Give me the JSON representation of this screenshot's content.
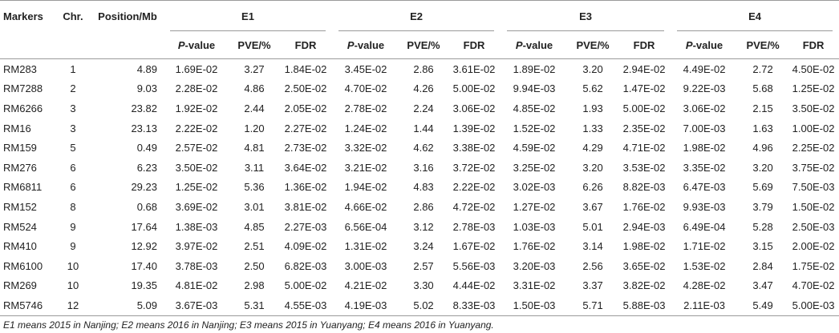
{
  "header": {
    "markers": "Markers",
    "chr": "Chr.",
    "position": "Position/Mb",
    "groups": [
      "E1",
      "E2",
      "E3",
      "E4"
    ],
    "sub": {
      "p_italic": "P",
      "p_rest": "-value",
      "pve": "PVE/%",
      "fdr": "FDR"
    }
  },
  "rows": [
    {
      "marker": "RM283",
      "chr": "1",
      "pos": "4.89",
      "vals": [
        "1.69E-02",
        "3.27",
        "1.84E-02",
        "3.45E-02",
        "2.86",
        "3.61E-02",
        "1.89E-02",
        "3.20",
        "2.94E-02",
        "4.49E-02",
        "2.72",
        "4.50E-02"
      ]
    },
    {
      "marker": "RM7288",
      "chr": "2",
      "pos": "9.03",
      "vals": [
        "2.28E-02",
        "4.86",
        "2.50E-02",
        "4.70E-02",
        "4.26",
        "5.00E-02",
        "9.94E-03",
        "5.62",
        "1.47E-02",
        "9.22E-03",
        "5.68",
        "1.25E-02"
      ]
    },
    {
      "marker": "RM6266",
      "chr": "3",
      "pos": "23.82",
      "vals": [
        "1.92E-02",
        "2.44",
        "2.05E-02",
        "2.78E-02",
        "2.24",
        "3.06E-02",
        "4.85E-02",
        "1.93",
        "5.00E-02",
        "3.06E-02",
        "2.15",
        "3.50E-02"
      ]
    },
    {
      "marker": "RM16",
      "chr": "3",
      "pos": "23.13",
      "vals": [
        "2.22E-02",
        "1.20",
        "2.27E-02",
        "1.24E-02",
        "1.44",
        "1.39E-02",
        "1.52E-02",
        "1.33",
        "2.35E-02",
        "7.00E-03",
        "1.63",
        "1.00E-02"
      ]
    },
    {
      "marker": "RM159",
      "chr": "5",
      "pos": "0.49",
      "vals": [
        "2.57E-02",
        "4.81",
        "2.73E-02",
        "3.32E-02",
        "4.62",
        "3.38E-02",
        "4.59E-02",
        "4.29",
        "4.71E-02",
        "1.98E-02",
        "4.96",
        "2.25E-02"
      ]
    },
    {
      "marker": "RM276",
      "chr": "6",
      "pos": "6.23",
      "vals": [
        "3.50E-02",
        "3.11",
        "3.64E-02",
        "3.21E-02",
        "3.16",
        "3.72E-02",
        "3.25E-02",
        "3.20",
        "3.53E-02",
        "3.35E-02",
        "3.20",
        "3.75E-02"
      ]
    },
    {
      "marker": "RM6811",
      "chr": "6",
      "pos": "29.23",
      "vals": [
        "1.25E-02",
        "5.36",
        "1.36E-02",
        "1.94E-02",
        "4.83",
        "2.22E-02",
        "3.02E-03",
        "6.26",
        "8.82E-03",
        "6.47E-03",
        "5.69",
        "7.50E-03"
      ]
    },
    {
      "marker": "RM152",
      "chr": "8",
      "pos": "0.68",
      "vals": [
        "3.69E-02",
        "3.01",
        "3.81E-02",
        "4.66E-02",
        "2.86",
        "4.72E-02",
        "1.27E-02",
        "3.67",
        "1.76E-02",
        "9.93E-03",
        "3.79",
        "1.50E-02"
      ]
    },
    {
      "marker": "RM524",
      "chr": "9",
      "pos": "17.64",
      "vals": [
        "1.38E-03",
        "4.85",
        "2.27E-03",
        "6.56E-04",
        "3.12",
        "2.78E-03",
        "1.03E-03",
        "5.01",
        "2.94E-03",
        "6.49E-04",
        "5.28",
        "2.50E-03"
      ]
    },
    {
      "marker": "RM410",
      "chr": "9",
      "pos": "12.92",
      "vals": [
        "3.97E-02",
        "2.51",
        "4.09E-02",
        "1.31E-02",
        "3.24",
        "1.67E-02",
        "1.76E-02",
        "3.14",
        "1.98E-02",
        "1.71E-02",
        "3.15",
        "2.00E-02"
      ]
    },
    {
      "marker": "RM6100",
      "chr": "10",
      "pos": "17.40",
      "vals": [
        "3.78E-03",
        "2.50",
        "6.82E-03",
        "3.00E-03",
        "2.57",
        "5.56E-03",
        "3.20E-03",
        "2.56",
        "3.65E-02",
        "1.53E-02",
        "2.84",
        "1.75E-02"
      ]
    },
    {
      "marker": "RM269",
      "chr": "10",
      "pos": "19.35",
      "vals": [
        "4.81E-02",
        "2.98",
        "5.00E-02",
        "4.21E-02",
        "3.30",
        "4.44E-02",
        "3.31E-02",
        "3.37",
        "3.82E-02",
        "4.28E-02",
        "3.47",
        "4.70E-02"
      ]
    },
    {
      "marker": "RM5746",
      "chr": "12",
      "pos": "5.09",
      "vals": [
        "3.67E-03",
        "5.31",
        "4.55E-03",
        "4.19E-03",
        "5.02",
        "8.33E-03",
        "1.50E-03",
        "5.71",
        "5.88E-03",
        "2.11E-03",
        "5.49",
        "5.00E-03"
      ]
    }
  ],
  "footnote": "E1 means 2015 in Nanjing; E2 means 2016 in Nanjing; E3 means 2015 in Yuanyang; E4 means 2016 in Yuanyang."
}
